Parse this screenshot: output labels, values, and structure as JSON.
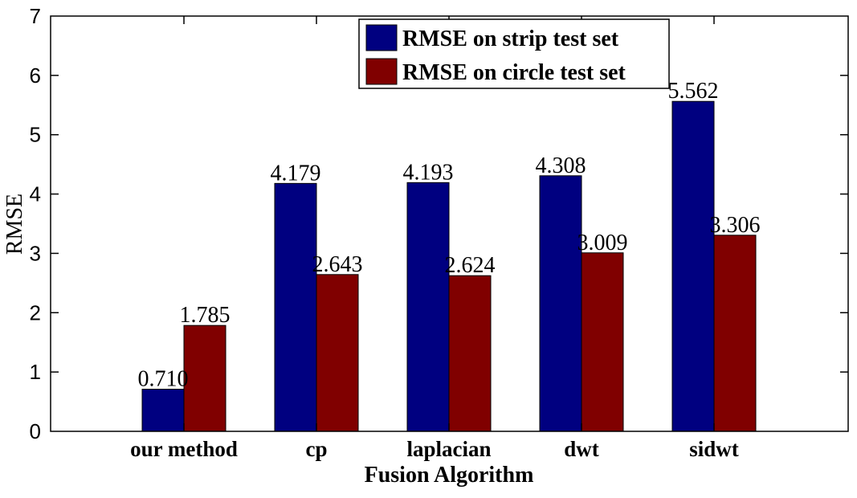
{
  "chart_data": {
    "type": "bar",
    "xlabel": "Fusion Algorithm",
    "ylabel": "RMSE",
    "ylim": [
      0,
      7
    ],
    "yticks": [
      "0",
      "1",
      "2",
      "3",
      "4",
      "5",
      "6",
      "7"
    ],
    "categories": [
      "our method",
      "cp",
      "laplacian",
      "dwt",
      "sidwt"
    ],
    "series": [
      {
        "name": "RMSE on strip test set",
        "color": "#000080",
        "values": [
          0.71,
          4.179,
          4.193,
          4.308,
          5.562
        ],
        "labels": [
          "0.710",
          "4.179",
          "4.193",
          "4.308",
          "5.562"
        ]
      },
      {
        "name": "RMSE on circle test set",
        "color": "#800000",
        "values": [
          1.785,
          2.643,
          2.624,
          3.009,
          3.306
        ],
        "labels": [
          "1.785",
          "2.643",
          "2.624",
          "3.009",
          "3.306"
        ]
      }
    ],
    "legend_position": "top-right",
    "grid": false
  }
}
